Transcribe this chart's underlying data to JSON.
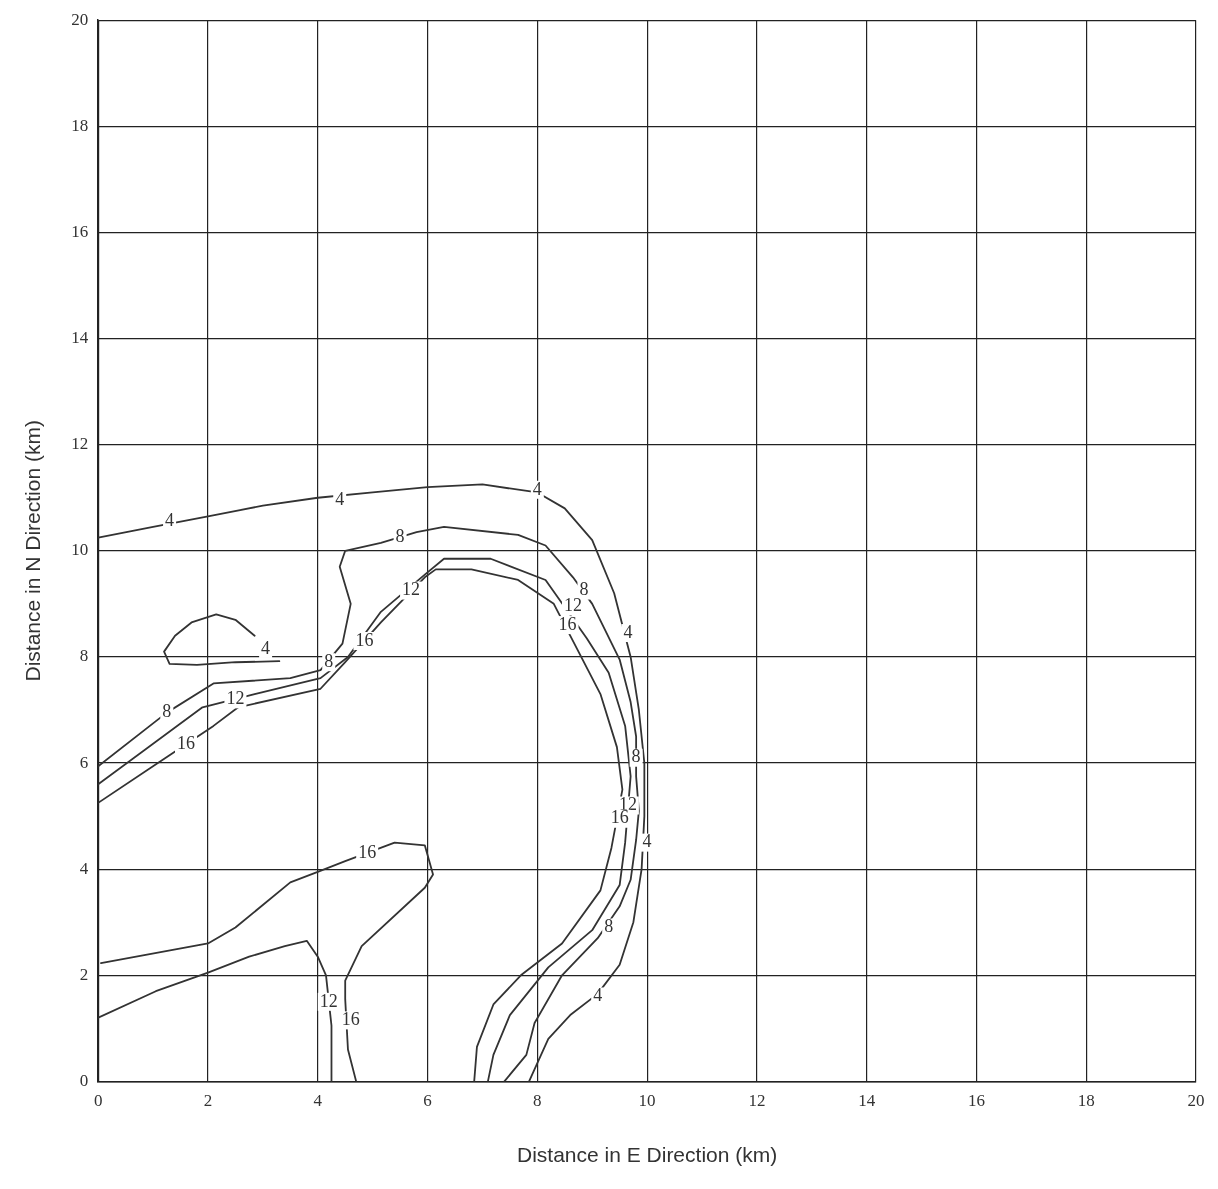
{
  "chart_data": {
    "type": "line",
    "xlabel": "Distance in E Direction (km)",
    "ylabel": "Distance in N Direction (km)",
    "xlim": [
      0,
      20
    ],
    "ylim": [
      0,
      20
    ],
    "xticks": [
      0,
      2,
      4,
      6,
      8,
      10,
      12,
      14,
      16,
      18,
      20
    ],
    "yticks": [
      0,
      2,
      4,
      6,
      8,
      10,
      12,
      14,
      16,
      18,
      20
    ],
    "grid": true,
    "marker": "none",
    "line_style": "solid",
    "legend": false,
    "series": [
      {
        "color": "#333333",
        "x": [
          0,
          1,
          2,
          3,
          4,
          5,
          6,
          7,
          8,
          8.5,
          9,
          9.4,
          9.7,
          9.85,
          9.95,
          9.95,
          9.9,
          9.75,
          9.5,
          9.1,
          8.6,
          8.2,
          7.85
        ],
        "values": [
          10.25,
          10.45,
          10.65,
          10.85,
          11,
          11.1,
          11.2,
          11.25,
          11.1,
          10.8,
          10.2,
          9.2,
          8,
          7,
          6,
          5,
          4,
          3,
          2.2,
          1.65,
          1.25,
          0.8,
          0
        ]
      },
      {
        "color": "#333333",
        "x": [
          3.3,
          2.5,
          1.8,
          1.3,
          1.2,
          1.4,
          1.7,
          2.15,
          2.5,
          2.85
        ],
        "values": [
          7.92,
          7.9,
          7.85,
          7.87,
          8.1,
          8.4,
          8.65,
          8.8,
          8.7,
          8.4
        ]
      },
      {
        "color": "#333333",
        "x": [
          0,
          1.25,
          2.1,
          3.5,
          4.05,
          4.45,
          4.6,
          4.4,
          4.5,
          5.15,
          5.8,
          6.3,
          7.65,
          8.15,
          8.65,
          9,
          9.5,
          9.7,
          9.8,
          9.8,
          9.85,
          9.8,
          9.7,
          9.5,
          9.1,
          8.45,
          7.95,
          7.8,
          7.4
        ],
        "values": [
          5.94,
          6.95,
          7.5,
          7.6,
          7.75,
          8.25,
          9,
          9.7,
          10,
          10.15,
          10.35,
          10.45,
          10.3,
          10.1,
          9.5,
          9,
          7.95,
          7.15,
          6.5,
          5.75,
          5.1,
          4.55,
          3.8,
          3.3,
          2.7,
          2,
          1.1,
          0.5,
          0
        ]
      },
      {
        "color": "#333333",
        "x": [
          0,
          1.9,
          2.85,
          4.05,
          4.55,
          5.15,
          5.95,
          6.3,
          7.15,
          8.15,
          8.9,
          9.3,
          9.6,
          9.7,
          9.6,
          9.5,
          9,
          8.2,
          7.5,
          7.2,
          7.1
        ],
        "values": [
          5.6,
          7.05,
          7.3,
          7.6,
          8,
          8.85,
          9.55,
          9.85,
          9.85,
          9.45,
          8.35,
          7.7,
          6.7,
          5.75,
          4.5,
          3.7,
          2.85,
          2.15,
          1.25,
          0.5,
          0
        ]
      },
      {
        "color": "#333333",
        "x": [
          0,
          1.05,
          2,
          2.75,
          3.4,
          3.8,
          4,
          4.15,
          4.25,
          4.25
        ],
        "values": [
          1.2,
          1.7,
          2.05,
          2.35,
          2.55,
          2.65,
          2.35,
          2,
          1.05,
          0
        ]
      },
      {
        "color": "#333333",
        "x": [
          0,
          2.1,
          2.55,
          4.05,
          4.5,
          5.15,
          5.95,
          6.15,
          6.8,
          7.65,
          8.3,
          8.75,
          9.15,
          9.45,
          9.55,
          9.35,
          9.15,
          8.45,
          7.7,
          7.2,
          6.9,
          6.85
        ],
        "values": [
          5.25,
          6.7,
          7.05,
          7.4,
          7.9,
          8.65,
          9.5,
          9.65,
          9.65,
          9.45,
          9,
          8.1,
          7.3,
          6.3,
          5.5,
          4.4,
          3.6,
          2.6,
          2,
          1.45,
          0.65,
          0
        ]
      },
      {
        "color": "#333333",
        "x": [
          0.05,
          2,
          2.5,
          3.5,
          4,
          4.5,
          5.4,
          5.95,
          6.1,
          5.95,
          4.8,
          4.5,
          4.5,
          4.55,
          4.7
        ],
        "values": [
          2.23,
          2.6,
          2.9,
          3.75,
          3.95,
          4.15,
          4.5,
          4.45,
          3.9,
          3.65,
          2.55,
          1.9,
          1.55,
          0.6,
          0
        ]
      }
    ],
    "annotations": [
      {
        "text": "4",
        "x": 1.3,
        "y": 10.55
      },
      {
        "text": "4",
        "x": 4.4,
        "y": 10.95
      },
      {
        "text": "4",
        "x": 8,
        "y": 11.15
      },
      {
        "text": "4",
        "x": 9.65,
        "y": 8.45
      },
      {
        "text": "4",
        "x": 3.05,
        "y": 8.15
      },
      {
        "text": "4",
        "x": 10.0,
        "y": 4.5
      },
      {
        "text": "4",
        "x": 9.1,
        "y": 1.6
      },
      {
        "text": "8",
        "x": 1.25,
        "y": 6.95
      },
      {
        "text": "8",
        "x": 4.2,
        "y": 7.9
      },
      {
        "text": "8",
        "x": 5.5,
        "y": 10.25
      },
      {
        "text": "8",
        "x": 8.85,
        "y": 9.25
      },
      {
        "text": "8",
        "x": 9.8,
        "y": 6.1
      },
      {
        "text": "8",
        "x": 9.3,
        "y": 2.9
      },
      {
        "text": "12",
        "x": 2.5,
        "y": 7.2
      },
      {
        "text": "12",
        "x": 5.7,
        "y": 9.25
      },
      {
        "text": "12",
        "x": 8.65,
        "y": 8.95
      },
      {
        "text": "12",
        "x": 9.65,
        "y": 5.2
      },
      {
        "text": "12",
        "x": 4.2,
        "y": 1.5
      },
      {
        "text": "16",
        "x": 1.6,
        "y": 6.35
      },
      {
        "text": "16",
        "x": 4.85,
        "y": 8.3
      },
      {
        "text": "16",
        "x": 8.55,
        "y": 8.6
      },
      {
        "text": "16",
        "x": 9.5,
        "y": 4.95
      },
      {
        "text": "16",
        "x": 4.9,
        "y": 4.3
      },
      {
        "text": "16",
        "x": 4.6,
        "y": 1.15
      }
    ]
  }
}
